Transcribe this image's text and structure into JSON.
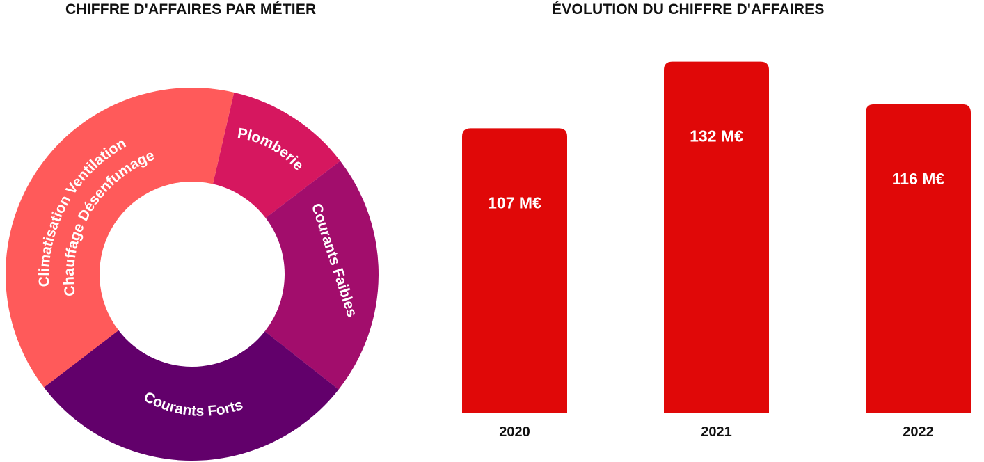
{
  "titles": {
    "left": "CHIFFRE D'AFFAIRES PAR MÉTIER",
    "right": "ÉVOLUTION DU CHIFFRE D'AFFAIRES"
  },
  "chart_data": [
    {
      "type": "pie",
      "variant": "donut",
      "title": "CHIFFRE D'AFFAIRES PAR MÉTIER",
      "slices": [
        {
          "label": "Plomberie",
          "value": 11,
          "color": "#D6175F"
        },
        {
          "label": "Courants Faibles",
          "value": 21,
          "color": "#A20D6C"
        },
        {
          "label": "Courants Forts",
          "value": 29,
          "color": "#62006B"
        },
        {
          "label": "Climatisation Ventilation Chauffage Désenfumage",
          "value": 39,
          "color": "#FF5A5A"
        }
      ]
    },
    {
      "type": "bar",
      "title": "ÉVOLUTION DU CHIFFRE D'AFFAIRES",
      "categories": [
        "2020",
        "2021",
        "2022"
      ],
      "values": [
        107,
        132,
        116
      ],
      "data_labels": [
        "107 M€",
        "132 M€",
        "116 M€"
      ],
      "ylim": [
        0,
        140
      ],
      "color": "#E00808",
      "grid": false
    }
  ]
}
